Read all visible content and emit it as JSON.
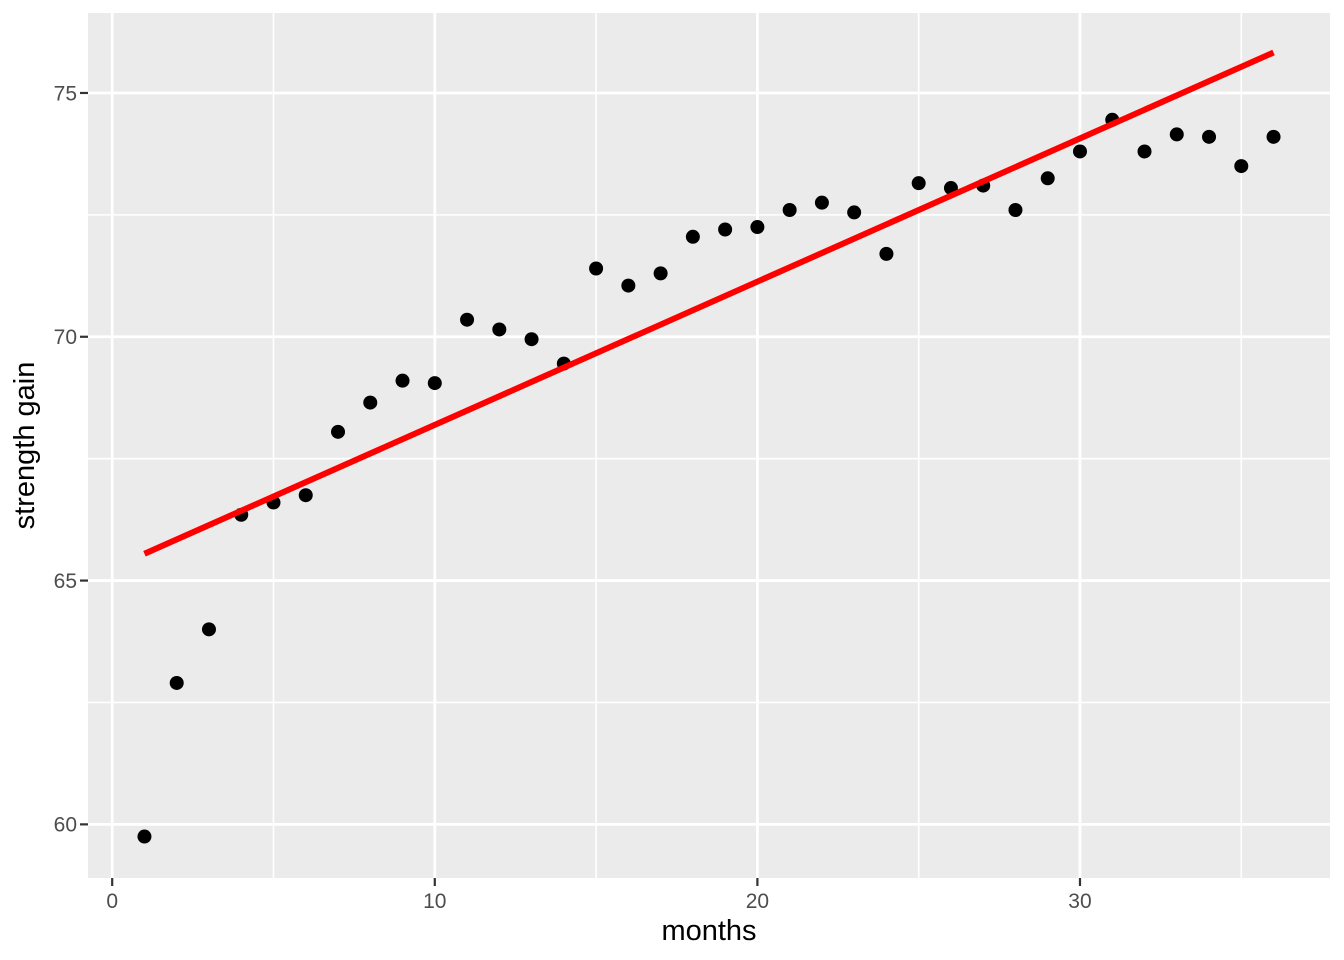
{
  "chart_data": {
    "type": "scatter",
    "title": "",
    "xlabel": "months",
    "ylabel": "strength gain",
    "xlim": [
      -0.75,
      37.75
    ],
    "ylim": [
      58.9,
      76.64
    ],
    "x_major_ticks": [
      0,
      10,
      20,
      30
    ],
    "x_minor_ticks": [
      5,
      15,
      25,
      35
    ],
    "y_major_ticks": [
      60,
      65,
      70,
      75
    ],
    "y_minor_ticks": [
      62.5,
      67.5,
      72.5
    ],
    "grid": "major+minor on gray panel",
    "legend": "none",
    "series": [
      {
        "name": "observations",
        "points": [
          [
            1,
            59.75
          ],
          [
            2,
            62.9
          ],
          [
            3,
            64.0
          ],
          [
            4,
            66.35
          ],
          [
            5,
            66.6
          ],
          [
            6,
            66.75
          ],
          [
            7,
            68.05
          ],
          [
            8,
            68.65
          ],
          [
            9,
            69.1
          ],
          [
            10,
            69.05
          ],
          [
            11,
            70.35
          ],
          [
            12,
            70.15
          ],
          [
            13,
            69.95
          ],
          [
            14,
            69.45
          ],
          [
            15,
            71.4
          ],
          [
            16,
            71.05
          ],
          [
            17,
            71.3
          ],
          [
            18,
            72.05
          ],
          [
            19,
            72.2
          ],
          [
            20,
            72.25
          ],
          [
            21,
            72.6
          ],
          [
            22,
            72.75
          ],
          [
            23,
            72.55
          ],
          [
            24,
            71.7
          ],
          [
            25,
            73.15
          ],
          [
            26,
            73.05
          ],
          [
            27,
            73.1
          ],
          [
            28,
            72.6
          ],
          [
            29,
            73.25
          ],
          [
            30,
            73.8
          ],
          [
            31,
            74.45
          ],
          [
            32,
            73.8
          ],
          [
            33,
            74.15
          ],
          [
            34,
            74.1
          ],
          [
            35,
            73.5
          ],
          [
            36,
            74.1
          ]
        ]
      }
    ],
    "trend_line": {
      "description": "linear fit",
      "x1": 1,
      "y1": 65.55,
      "x2": 36,
      "y2": 75.83
    },
    "colors": {
      "panel_background": "#EBEBEB",
      "grid": "#FFFFFF",
      "point": "#000000",
      "trend_line": "#FF0000",
      "tick_mark": "#333333",
      "tick_label": "#4D4D4D",
      "axis_title": "#000000",
      "outer_background": "#FFFFFF"
    }
  }
}
